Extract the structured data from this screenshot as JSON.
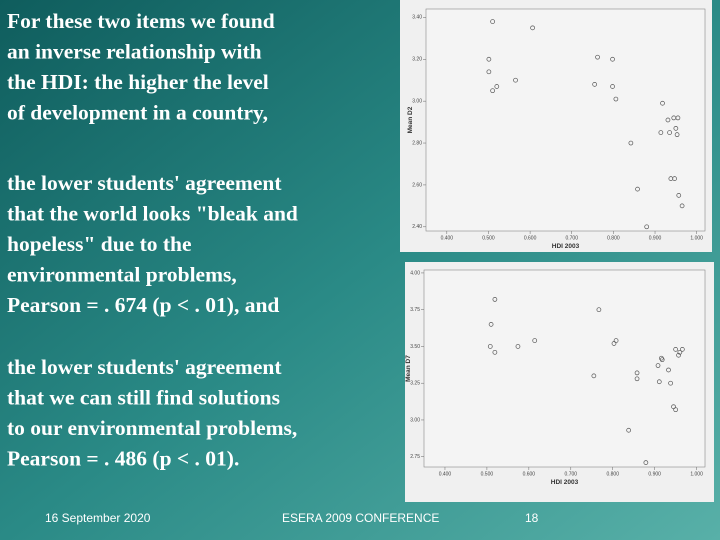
{
  "slide": {
    "paragraphs": [
      [
        "For these two items we found",
        "an inverse relationship with",
        "the HDI: the higher the level",
        "of development in a country,"
      ],
      [
        "the lower students' agreement",
        "that the world looks \"bleak and",
        "hopeless\" due to the",
        "environmental problems,",
        "Pearson = . 674 (p < . 01), and"
      ],
      [
        "the lower students' agreement",
        "that we can still find solutions",
        "to our environmental problems,",
        "Pearson = . 486 (p < . 01)."
      ]
    ],
    "footer": {
      "date": "16 September 2020",
      "conference": "ESERA 2009 CONFERENCE",
      "page": "18"
    }
  },
  "chart_data": [
    {
      "type": "scatter",
      "x_label": "HDI 2003",
      "y_label": "Mean D2",
      "color": "#555555",
      "x": [
        0.51,
        0.606,
        0.501,
        0.501,
        0.51,
        0.52,
        0.565,
        0.762,
        0.798,
        0.755,
        0.798,
        0.806,
        0.918,
        0.945,
        0.931,
        0.955,
        0.914,
        0.935,
        0.95,
        0.953,
        0.842,
        0.938,
        0.947,
        0.858,
        0.957,
        0.965,
        0.88
      ],
      "values": [
        3.38,
        3.35,
        3.2,
        3.14,
        3.05,
        3.07,
        3.1,
        3.21,
        3.2,
        3.08,
        3.07,
        3.01,
        2.99,
        2.92,
        2.91,
        2.92,
        2.85,
        2.85,
        2.87,
        2.84,
        2.8,
        2.63,
        2.63,
        2.58,
        2.55,
        2.5,
        2.4
      ],
      "xlim": [
        0.35,
        1.02
      ],
      "ylim": [
        2.38,
        3.44
      ],
      "xticks": [
        {
          "value": 0.4,
          "label": "0.400"
        },
        {
          "value": 0.5,
          "label": "0.500"
        },
        {
          "value": 0.6,
          "label": "0.600"
        },
        {
          "value": 0.7,
          "label": "0.700"
        },
        {
          "value": 0.8,
          "label": "0.800"
        },
        {
          "value": 0.9,
          "label": "0.900"
        },
        {
          "value": 1.0,
          "label": "1.000"
        }
      ],
      "yticks": [
        {
          "value": 2.4,
          "label": "2.40"
        },
        {
          "value": 2.6,
          "label": "2.60"
        },
        {
          "value": 2.8,
          "label": "2.80"
        },
        {
          "value": 3.0,
          "label": "3.00"
        },
        {
          "value": 3.2,
          "label": "3.20"
        },
        {
          "value": 3.4,
          "label": "3.40"
        }
      ]
    },
    {
      "type": "scatter",
      "x_label": "HDI 2003",
      "y_label": "Mean D7",
      "color": "#555555",
      "x": [
        0.519,
        0.51,
        0.508,
        0.519,
        0.574,
        0.614,
        0.767,
        0.808,
        0.803,
        0.755,
        0.858,
        0.858,
        0.908,
        0.916,
        0.918,
        0.933,
        0.95,
        0.957,
        0.966,
        0.96,
        0.938,
        0.911,
        0.945,
        0.95,
        0.838,
        0.879
      ],
      "values": [
        3.82,
        3.65,
        3.5,
        3.46,
        3.5,
        3.54,
        3.75,
        3.54,
        3.52,
        3.3,
        3.32,
        3.28,
        3.37,
        3.42,
        3.41,
        3.34,
        3.48,
        3.44,
        3.48,
        3.46,
        3.25,
        3.26,
        3.09,
        3.07,
        2.93,
        2.71
      ],
      "xlim": [
        0.35,
        1.02
      ],
      "ylim": [
        2.68,
        4.02
      ],
      "xticks": [
        {
          "value": 0.4,
          "label": "0.400"
        },
        {
          "value": 0.5,
          "label": "0.500"
        },
        {
          "value": 0.6,
          "label": "0.600"
        },
        {
          "value": 0.7,
          "label": "0.700"
        },
        {
          "value": 0.8,
          "label": "0.800"
        },
        {
          "value": 0.9,
          "label": "0.900"
        },
        {
          "value": 1.0,
          "label": "1.000"
        }
      ],
      "yticks": [
        {
          "value": 2.75,
          "label": "2.75"
        },
        {
          "value": 3.0,
          "label": "3.00"
        },
        {
          "value": 3.25,
          "label": "3.25"
        },
        {
          "value": 3.5,
          "label": "3.50"
        },
        {
          "value": 3.75,
          "label": "3.75"
        },
        {
          "value": 4.0,
          "label": "4.00"
        }
      ]
    }
  ]
}
